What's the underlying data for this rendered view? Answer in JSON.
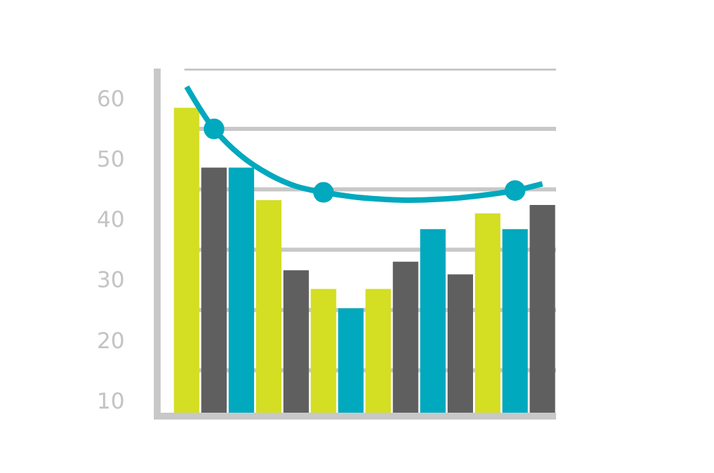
{
  "chart_data": {
    "type": "bar",
    "categories": [
      null,
      null,
      null,
      null,
      null,
      null,
      null,
      null,
      null,
      null,
      null,
      null,
      null,
      null
    ],
    "series": [
      {
        "colors": [
          "#d4de23",
          "#5f5f5f",
          "#00a9be",
          "#d4de23",
          "#5f5f5f",
          "#d4de23",
          "#00a9be",
          "#d4de23",
          "#5f5f5f",
          "#00a9be",
          "#5f5f5f",
          "#d4de23",
          "#00a9be",
          "#5f5f5f"
        ],
        "values": [
          58.5,
          48.6,
          48.6,
          43.2,
          31.6,
          28.5,
          25.3,
          28.5,
          33,
          38.4,
          30.9,
          41,
          38.4,
          42.4
        ]
      },
      {
        "type": "line",
        "color": "#00a9be",
        "marker": "none",
        "values": [
          62,
          55,
          50.5,
          47.5,
          45.5,
          44.5,
          43.8,
          43.4,
          43.2,
          43.3,
          43.6,
          44.1,
          44.8,
          45.9
        ]
      },
      {
        "type": "scatter",
        "color": "#00a9be",
        "marker": "circle",
        "values": [
          null,
          55,
          null,
          null,
          null,
          44.5,
          null,
          null,
          null,
          null,
          null,
          null,
          44.8,
          null
        ]
      }
    ],
    "ylim": [
      8,
      65
    ],
    "yticks": [
      10,
      20,
      30,
      40,
      50,
      60,
      {
        "value": 15,
        "label": null
      },
      {
        "value": 25,
        "label": null
      },
      {
        "value": 35,
        "label": null
      },
      {
        "value": 45,
        "label": null
      },
      {
        "value": 55,
        "label": null
      },
      {
        "value": 65,
        "label": null
      }
    ],
    "grid": true,
    "legend": false,
    "tick_labels": "y"
  }
}
